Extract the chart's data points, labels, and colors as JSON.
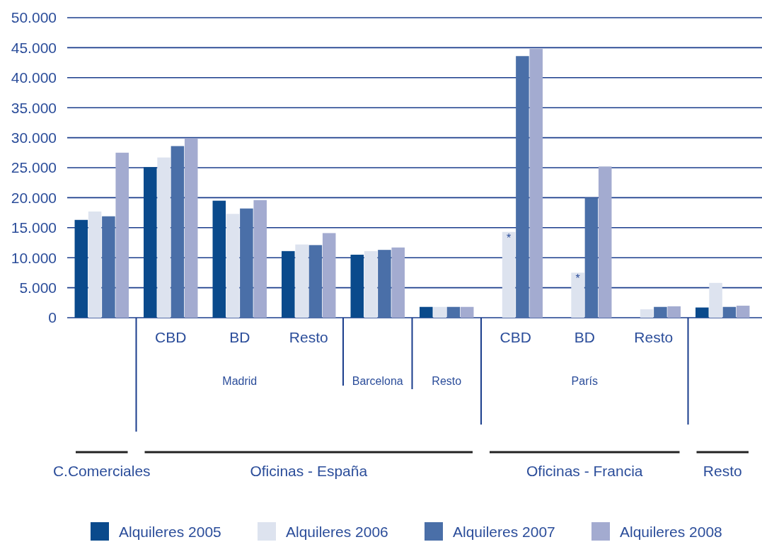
{
  "chart_data": {
    "type": "bar",
    "categories": [
      null,
      "CBD",
      "BD",
      "Resto",
      null,
      null,
      "CBD",
      "BD",
      "Resto",
      null
    ],
    "series": [
      {
        "name": "Alquileres 2005",
        "color": "#0a4a8c",
        "values": [
          16300,
          25100,
          19500,
          11100,
          10500,
          1800,
          null,
          null,
          null,
          1700
        ]
      },
      {
        "name": "Alquileres 2006",
        "color": "#dde3ef",
        "values": [
          17700,
          26700,
          17300,
          12200,
          11100,
          1800,
          14300,
          7500,
          1400,
          5800
        ]
      },
      {
        "name": "Alquileres 2007",
        "color": "#4a6fa8",
        "values": [
          16900,
          28600,
          18200,
          12100,
          11300,
          1800,
          43600,
          20000,
          1800,
          1800
        ]
      },
      {
        "name": "Alquileres 2008",
        "color": "#a3abd0",
        "values": [
          27500,
          29900,
          19600,
          14100,
          11700,
          1800,
          44800,
          25200,
          1900,
          2000
        ]
      }
    ],
    "ylim": [
      0,
      50000
    ],
    "yticks": [
      {
        "value": 0,
        "label": "0"
      },
      {
        "value": 5000,
        "label": "5.000"
      },
      {
        "value": 10000,
        "label": "10.000"
      },
      {
        "value": 15000,
        "label": "15.000"
      },
      {
        "value": 20000,
        "label": "20.000"
      },
      {
        "value": 25000,
        "label": "25.000"
      },
      {
        "value": 30000,
        "label": "30.000"
      },
      {
        "value": 35000,
        "label": "35.000"
      },
      {
        "value": 40000,
        "label": "40.000"
      },
      {
        "value": 45000,
        "label": "45.000"
      },
      {
        "value": 50000,
        "label": "50.000"
      }
    ],
    "grid": "y",
    "legend": "bottom",
    "annotations": [
      "Madrid",
      "Barcelona",
      "Resto",
      "París",
      "C.Comerciales",
      "Oficinas - España",
      "Oficinas - Francia",
      "Resto",
      "*",
      "*"
    ]
  }
}
